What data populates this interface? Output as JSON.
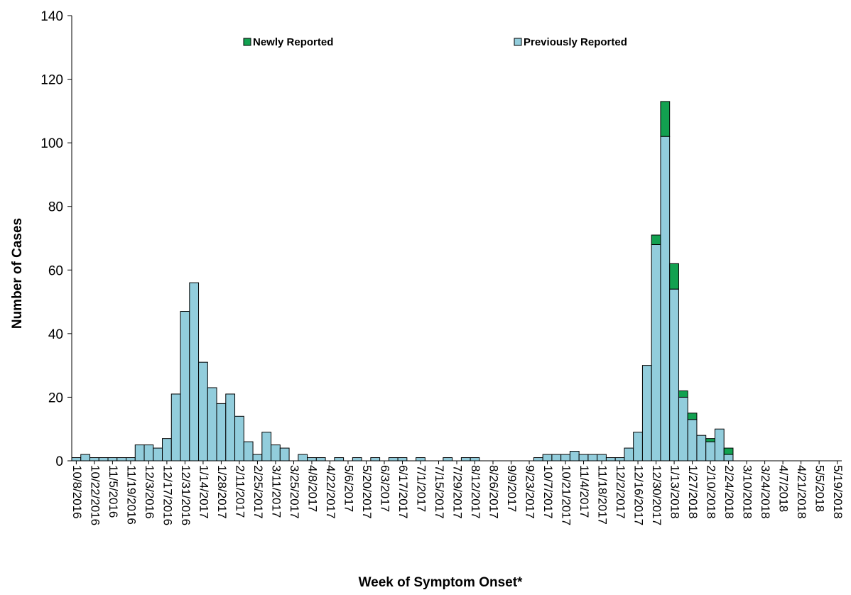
{
  "chart_data": {
    "type": "stacked-bar",
    "x_label": "Week of Symptom Onset*",
    "y_label": "Number of Cases",
    "categories": [
      "10/8/2016",
      null,
      "10/22/2016",
      null,
      "11/5/2016",
      null,
      "11/19/2016",
      null,
      "12/3/2016",
      null,
      "12/17/2016",
      null,
      "12/31/2016",
      null,
      "1/14/2017",
      null,
      "1/28/2017",
      null,
      "2/11/2017",
      null,
      "2/25/2017",
      null,
      "3/11/2017",
      null,
      "3/25/2017",
      null,
      "4/8/2017",
      null,
      "4/22/2017",
      null,
      "5/6/2017",
      null,
      "5/20/2017",
      null,
      "6/3/2017",
      null,
      "6/17/2017",
      null,
      "7/1/2017",
      null,
      "7/15/2017",
      null,
      "7/29/2017",
      null,
      "8/12/2017",
      null,
      "8/26/2017",
      null,
      "9/9/2017",
      null,
      "9/23/2017",
      null,
      "10/7/2017",
      null,
      "10/21/2017",
      null,
      "11/4/2017",
      null,
      "11/18/2017",
      null,
      "12/2/2017",
      null,
      "12/16/2017",
      null,
      "12/30/2017",
      null,
      "1/13/2018",
      null,
      "1/27/2018",
      null,
      "2/10/2018",
      null,
      "2/24/2018",
      null,
      "3/10/2018",
      null,
      "3/24/2018",
      null,
      "4/7/2018",
      null,
      "4/21/2018",
      null,
      "5/5/2018",
      null,
      "5/19/2018"
    ],
    "series": [
      {
        "name": "Newly Reported",
        "color": "#12a150",
        "values": [
          0,
          0,
          0,
          0,
          0,
          0,
          0,
          0,
          0,
          0,
          0,
          0,
          0,
          0,
          0,
          0,
          0,
          0,
          0,
          0,
          0,
          0,
          0,
          0,
          0,
          0,
          0,
          0,
          0,
          0,
          0,
          0,
          0,
          0,
          0,
          0,
          0,
          0,
          0,
          0,
          0,
          0,
          0,
          0,
          0,
          0,
          0,
          0,
          0,
          0,
          0,
          0,
          0,
          0,
          0,
          0,
          0,
          0,
          0,
          0,
          0,
          0,
          0,
          0,
          3,
          11,
          8,
          2,
          2,
          0,
          1,
          0,
          2,
          0,
          0,
          0,
          0,
          0,
          0,
          0,
          0,
          0,
          0,
          0,
          0
        ]
      },
      {
        "name": "Previously Reported",
        "color": "#92cddc",
        "values": [
          1,
          2,
          1,
          1,
          1,
          1,
          1,
          5,
          5,
          4,
          7,
          21,
          47,
          56,
          31,
          23,
          18,
          21,
          14,
          6,
          2,
          9,
          5,
          4,
          0,
          2,
          1,
          1,
          0,
          1,
          0,
          1,
          0,
          1,
          0,
          1,
          1,
          0,
          1,
          0,
          0,
          1,
          0,
          1,
          1,
          0,
          0,
          0,
          0,
          0,
          0,
          1,
          2,
          2,
          2,
          3,
          2,
          2,
          2,
          1,
          1,
          4,
          9,
          30,
          68,
          102,
          54,
          20,
          13,
          8,
          6,
          10,
          2,
          0,
          0,
          0,
          0,
          0,
          0,
          0,
          0,
          0,
          0,
          0,
          0
        ]
      }
    ],
    "ylim": [
      0,
      140
    ],
    "yticks": [
      0,
      20,
      40,
      60,
      80,
      100,
      120,
      140
    ]
  }
}
